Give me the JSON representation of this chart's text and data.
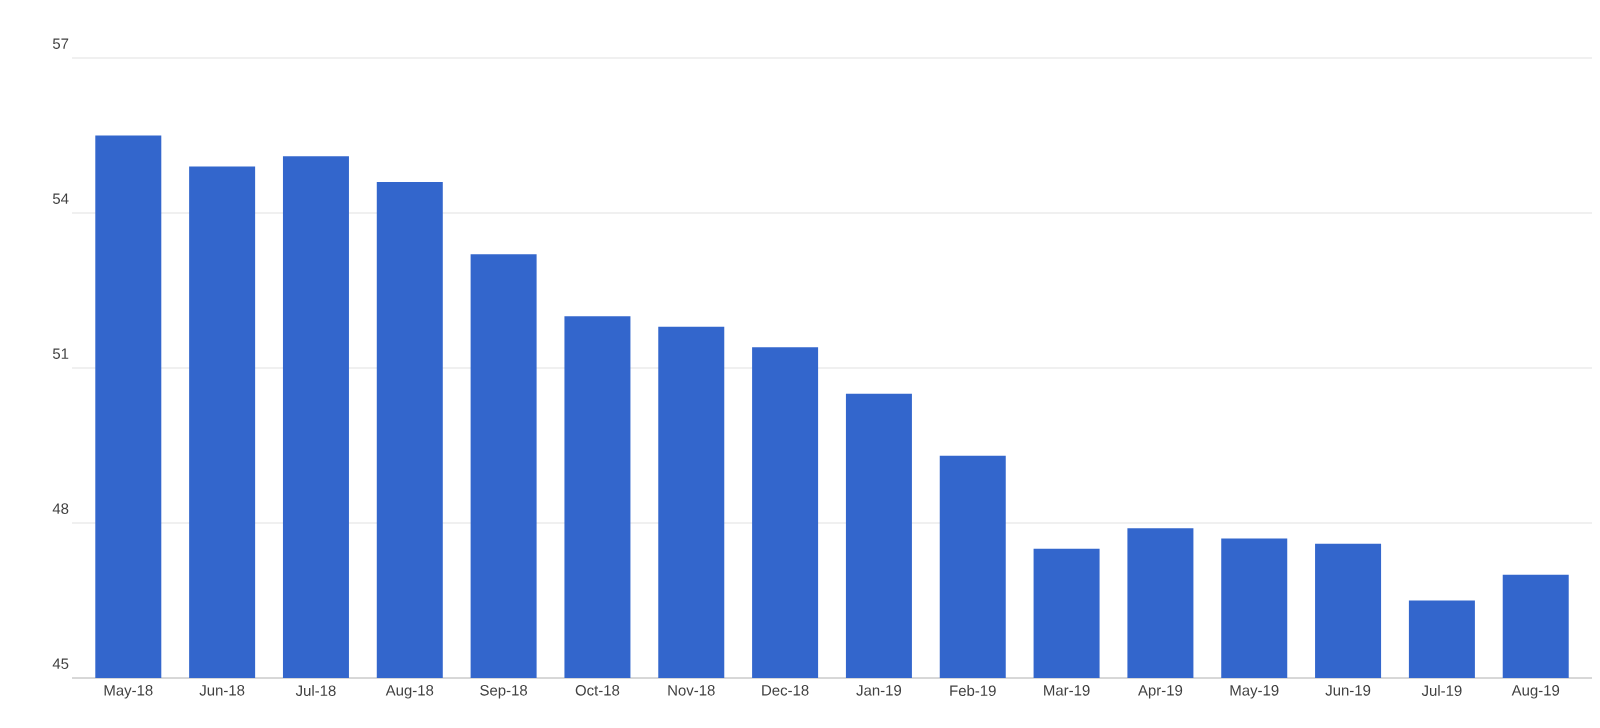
{
  "chart_data": {
    "type": "bar",
    "categories": [
      "May-18",
      "Jun-18",
      "Jul-18",
      "Aug-18",
      "Sep-18",
      "Oct-18",
      "Nov-18",
      "Dec-18",
      "Jan-19",
      "Feb-19",
      "Mar-19",
      "Apr-19",
      "May-19",
      "Jun-19",
      "Jul-19",
      "Aug-19"
    ],
    "values": [
      55.5,
      54.9,
      55.1,
      54.6,
      53.2,
      52.0,
      51.8,
      51.4,
      50.5,
      49.3,
      47.5,
      47.9,
      47.7,
      47.6,
      46.5,
      47.0
    ],
    "color": "#3366cc",
    "ylim": [
      45,
      57
    ],
    "yticks": [
      45,
      48,
      51,
      54,
      57
    ],
    "grid": "y"
  }
}
